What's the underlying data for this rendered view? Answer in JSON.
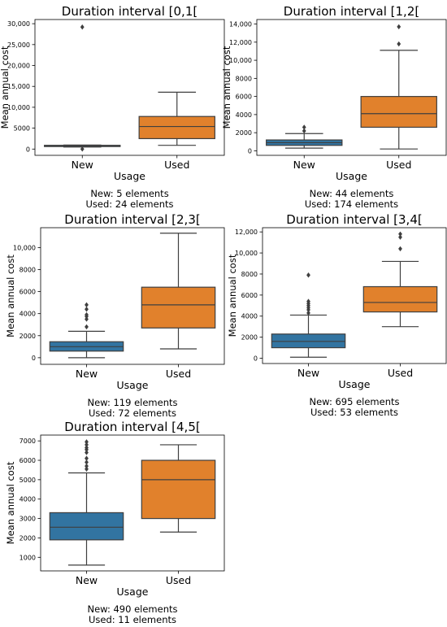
{
  "chart_data": [
    {
      "type": "box",
      "title": "Duration interval [0,1[",
      "xlabel": "Usage",
      "ylabel": "Mean annual cost",
      "ylim": [
        -1500,
        31000
      ],
      "yticks": [
        0,
        5000,
        10000,
        15000,
        20000,
        25000,
        30000
      ],
      "yticklabels": [
        "0",
        "5000",
        "10,000",
        "15,000",
        "20,000",
        "25,000",
        "30,000"
      ],
      "categories": [
        "New",
        "Used"
      ],
      "boxes": [
        {
          "name": "New",
          "whisker_low": 500,
          "q1": 600,
          "median": 700,
          "q3": 900,
          "whisker_high": 950,
          "outliers": [
            0,
            29200
          ]
        },
        {
          "name": "Used",
          "whisker_low": 900,
          "q1": 2500,
          "median": 5400,
          "q3": 7800,
          "whisker_high": 13600,
          "outliers": []
        }
      ],
      "caption": [
        "New: 5 elements",
        "Used: 24 elements"
      ]
    },
    {
      "type": "box",
      "title": "Duration interval [1,2[",
      "xlabel": "Usage",
      "ylabel": "Mean annual cost",
      "ylim": [
        -500,
        14500
      ],
      "yticks": [
        0,
        2000,
        4000,
        6000,
        8000,
        10000,
        12000,
        14000
      ],
      "yticklabels": [
        "0",
        "2000",
        "4000",
        "6000",
        "8000",
        "10,000",
        "12,000",
        "14,000"
      ],
      "categories": [
        "New",
        "Used"
      ],
      "boxes": [
        {
          "name": "New",
          "whisker_low": 300,
          "q1": 600,
          "median": 900,
          "q3": 1200,
          "whisker_high": 1900,
          "outliers": [
            2200,
            2600
          ]
        },
        {
          "name": "Used",
          "whisker_low": 200,
          "q1": 2600,
          "median": 4100,
          "q3": 6000,
          "whisker_high": 11100,
          "outliers": [
            11800,
            13700
          ]
        }
      ],
      "caption": [
        "New: 44 elements",
        "Used: 174 elements"
      ]
    },
    {
      "type": "box",
      "title": "Duration interval [2,3[",
      "xlabel": "Usage",
      "ylabel": "Mean annual cost",
      "ylim": [
        -600,
        11800
      ],
      "yticks": [
        0,
        2000,
        4000,
        6000,
        8000,
        10000
      ],
      "yticklabels": [
        "0",
        "2000",
        "4000",
        "6000",
        "8000",
        "10,000"
      ],
      "categories": [
        "New",
        "Used"
      ],
      "boxes": [
        {
          "name": "New",
          "whisker_low": 0,
          "q1": 600,
          "median": 1000,
          "q3": 1450,
          "whisker_high": 2400,
          "outliers": [
            2800,
            3500,
            3750,
            3900,
            4400,
            4800
          ]
        },
        {
          "name": "Used",
          "whisker_low": 800,
          "q1": 2700,
          "median": 4800,
          "q3": 6400,
          "whisker_high": 11300,
          "outliers": []
        }
      ],
      "caption": [
        "New: 119 elements",
        "Used: 72 elements"
      ]
    },
    {
      "type": "box",
      "title": "Duration interval [3,4[",
      "xlabel": "Usage",
      "ylabel": "Mean annual cost",
      "ylim": [
        -500,
        12400
      ],
      "yticks": [
        0,
        2000,
        4000,
        6000,
        8000,
        10000,
        12000
      ],
      "yticklabels": [
        "0",
        "2000",
        "4000",
        "6000",
        "8000",
        "10,000",
        "12,000"
      ],
      "categories": [
        "New",
        "Used"
      ],
      "boxes": [
        {
          "name": "New",
          "whisker_low": 100,
          "q1": 1000,
          "median": 1600,
          "q3": 2300,
          "whisker_high": 4100,
          "outliers": [
            4300,
            4600,
            4800,
            5000,
            5200,
            5400,
            7900
          ]
        },
        {
          "name": "Used",
          "whisker_low": 3000,
          "q1": 4400,
          "median": 5300,
          "q3": 6800,
          "whisker_high": 9200,
          "outliers": [
            10400,
            11500,
            11800
          ]
        }
      ],
      "caption": [
        "New: 695 elements",
        "Used: 53 elements"
      ]
    },
    {
      "type": "box",
      "title": "Duration interval [4,5[",
      "xlabel": "Usage",
      "ylabel": "Mean annual cost",
      "ylim": [
        300,
        7300
      ],
      "yticks": [
        1000,
        2000,
        3000,
        4000,
        5000,
        6000,
        7000
      ],
      "yticklabels": [
        "1000",
        "2000",
        "3000",
        "4000",
        "5000",
        "6000",
        "7000"
      ],
      "categories": [
        "New",
        "Used"
      ],
      "boxes": [
        {
          "name": "New",
          "whisker_low": 600,
          "q1": 1900,
          "median": 2550,
          "q3": 3300,
          "whisker_high": 5350,
          "outliers": [
            5550,
            5700,
            5900,
            6100,
            6400,
            6550,
            6650,
            6800,
            6950
          ]
        },
        {
          "name": "Used",
          "whisker_low": 2300,
          "q1": 3000,
          "median": 5000,
          "q3": 6000,
          "whisker_high": 6800,
          "outliers": []
        }
      ],
      "caption": [
        "New: 490 elements",
        "Used: 11 elements"
      ]
    }
  ],
  "colors": {
    "New": "#3274a1",
    "Used": "#e1812c",
    "line": "#3f3f3f"
  }
}
